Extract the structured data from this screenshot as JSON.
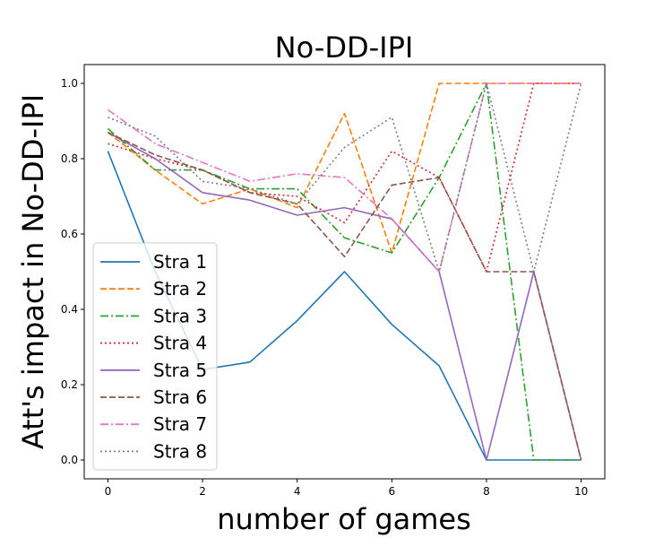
{
  "chart_data": {
    "type": "line",
    "title": "No-DD-IPI",
    "xlabel": "number of games",
    "ylabel": "Att's impact in No-DD-IPI",
    "xlim": [
      -0.5,
      10.5
    ],
    "ylim": [
      -0.05,
      1.05
    ],
    "xticks": [
      0,
      2,
      4,
      6,
      8,
      10
    ],
    "yticks": [
      0.0,
      0.2,
      0.4,
      0.6,
      0.8,
      1.0
    ],
    "xtick_labels": [
      "0",
      "2",
      "4",
      "6",
      "8",
      "10"
    ],
    "ytick_labels": [
      "0.0",
      "0.2",
      "0.4",
      "0.6",
      "0.8",
      "1.0"
    ],
    "grid": false,
    "legend_position": "lower-left",
    "x": [
      0,
      1,
      2,
      3,
      4,
      5,
      6,
      7,
      8,
      9,
      10
    ],
    "series": [
      {
        "name": "Stra 1",
        "color": "#1f77b4",
        "style": "solid",
        "values": [
          0.82,
          0.5,
          0.24,
          0.26,
          0.37,
          0.5,
          0.36,
          0.25,
          0.0,
          0.0,
          0.0
        ]
      },
      {
        "name": "Stra 2",
        "color": "#ff7f0e",
        "style": "dashed",
        "values": [
          0.87,
          0.77,
          0.68,
          0.72,
          0.67,
          0.92,
          0.55,
          1.0,
          1.0,
          1.0,
          1.0
        ]
      },
      {
        "name": "Stra 3",
        "color": "#2ca02c",
        "style": "dashdot",
        "values": [
          0.88,
          0.77,
          0.77,
          0.72,
          0.72,
          0.59,
          0.55,
          0.75,
          1.0,
          0.0,
          0.0
        ]
      },
      {
        "name": "Stra 4",
        "color": "#d62728",
        "style": "dotted",
        "values": [
          0.84,
          0.8,
          0.77,
          0.71,
          0.7,
          0.63,
          0.82,
          0.75,
          0.5,
          1.0,
          1.0
        ]
      },
      {
        "name": "Stra 5",
        "color": "#9467bd",
        "style": "solid",
        "values": [
          0.87,
          0.8,
          0.71,
          0.69,
          0.65,
          0.67,
          0.64,
          0.5,
          0.0,
          0.5,
          0.0
        ]
      },
      {
        "name": "Stra 6",
        "color": "#8c564b",
        "style": "dashed",
        "values": [
          0.87,
          0.81,
          0.77,
          0.71,
          0.68,
          0.54,
          0.73,
          0.75,
          0.5,
          0.5,
          0.0
        ]
      },
      {
        "name": "Stra 7",
        "color": "#e377c2",
        "style": "dashdot",
        "values": [
          0.93,
          0.84,
          0.79,
          0.74,
          0.76,
          0.75,
          0.64,
          0.5,
          1.0,
          1.0,
          1.0
        ]
      },
      {
        "name": "Stra 8",
        "color": "#7f7f7f",
        "style": "dotted",
        "values": [
          0.91,
          0.86,
          0.74,
          0.72,
          0.68,
          0.83,
          0.91,
          0.5,
          1.0,
          0.5,
          1.0
        ]
      }
    ]
  }
}
